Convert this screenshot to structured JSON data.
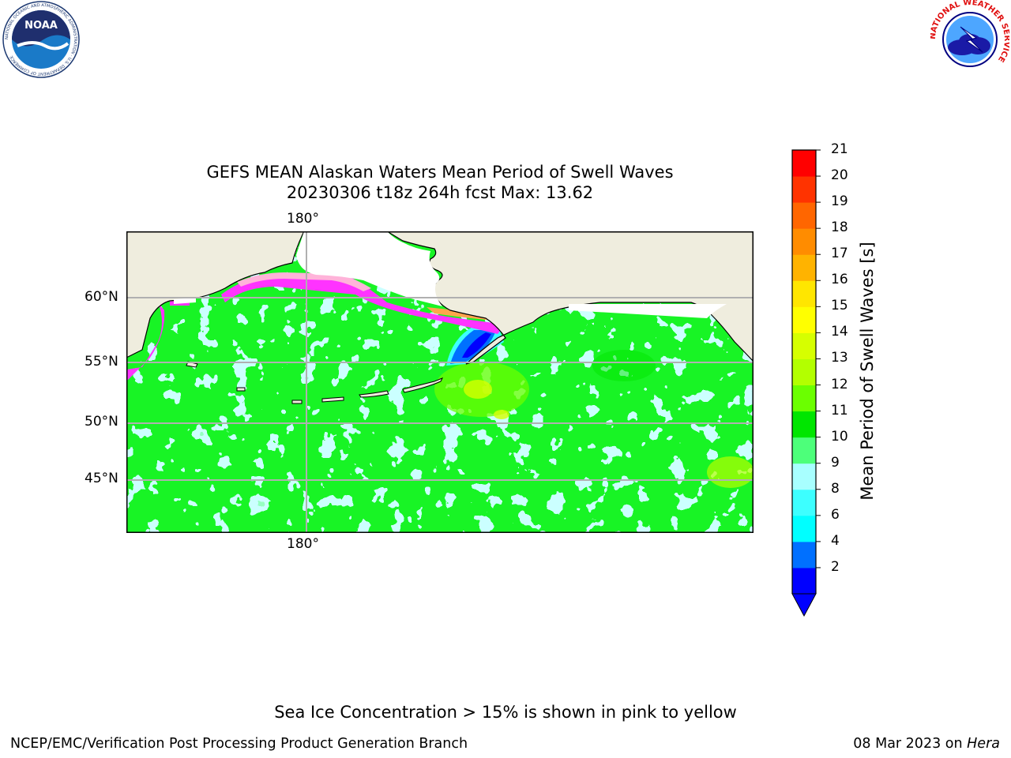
{
  "title": {
    "line1": "GEFS MEAN Alaskan Waters Mean Period of Swell Waves",
    "line2": "20230306 t18z 264h fcst   Max: 13.62"
  },
  "map": {
    "lon_label_top": "180°",
    "lon_label_bottom": "180°",
    "lat_labels": [
      "60°N",
      "55°N",
      "50°N",
      "45°N"
    ],
    "land_color": "#efedde",
    "ocean_base_color": "#a8ffff"
  },
  "colorbar": {
    "label": "Mean Period of Swell Waves [s]",
    "ticks": [
      "21",
      "20",
      "19",
      "18",
      "17",
      "16",
      "15",
      "14",
      "13",
      "12",
      "11",
      "10",
      "9",
      "8",
      "6",
      "4",
      "2"
    ],
    "colors_bottom_to_top": [
      "#0000ff",
      "#0070ff",
      "#00ffff",
      "#3dffff",
      "#a8ffff",
      "#4dff7a",
      "#00e600",
      "#6bff00",
      "#b3ff00",
      "#d6ff00",
      "#ffff00",
      "#ffe600",
      "#ffb300",
      "#ff8c00",
      "#ff6600",
      "#ff3300",
      "#ff0000"
    ]
  },
  "logos": {
    "noaa_text": "NOAA",
    "noaa_ring_text": "NATIONAL OCEANIC AND ATMOSPHERIC ADMINISTRATION · U.S. DEPARTMENT OF COMMERCE",
    "nws_ring_text": "NATIONAL WEATHER SERVICE"
  },
  "footer": {
    "note": "Sea Ice Concentration > 15% is shown in pink to yellow",
    "left": "NCEP/EMC/Verification Post Processing Product Generation Branch",
    "right_date": "08 Mar 2023 on ",
    "right_host": "Hera"
  }
}
